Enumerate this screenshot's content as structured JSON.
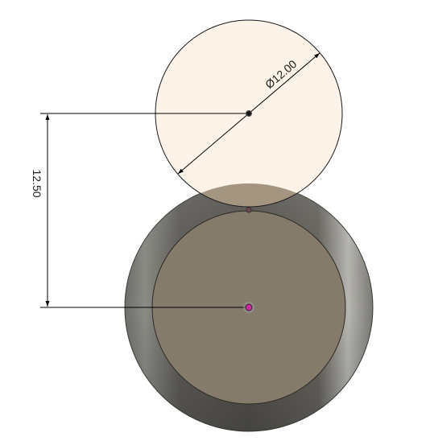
{
  "sketch": {
    "diameter_label": "Ø12.00",
    "distance_label": "12.50"
  },
  "colors": {
    "background": "#ffffff",
    "sketch_profile_fill": "#fdf3e8",
    "overlap_fill": "#a39580",
    "body_outer_ring": "#6a6a66",
    "body_face": "#857b6a",
    "dimension_line": "#000000",
    "center_point": "#1a1a1a",
    "origin_point": "#cc2a9a"
  }
}
